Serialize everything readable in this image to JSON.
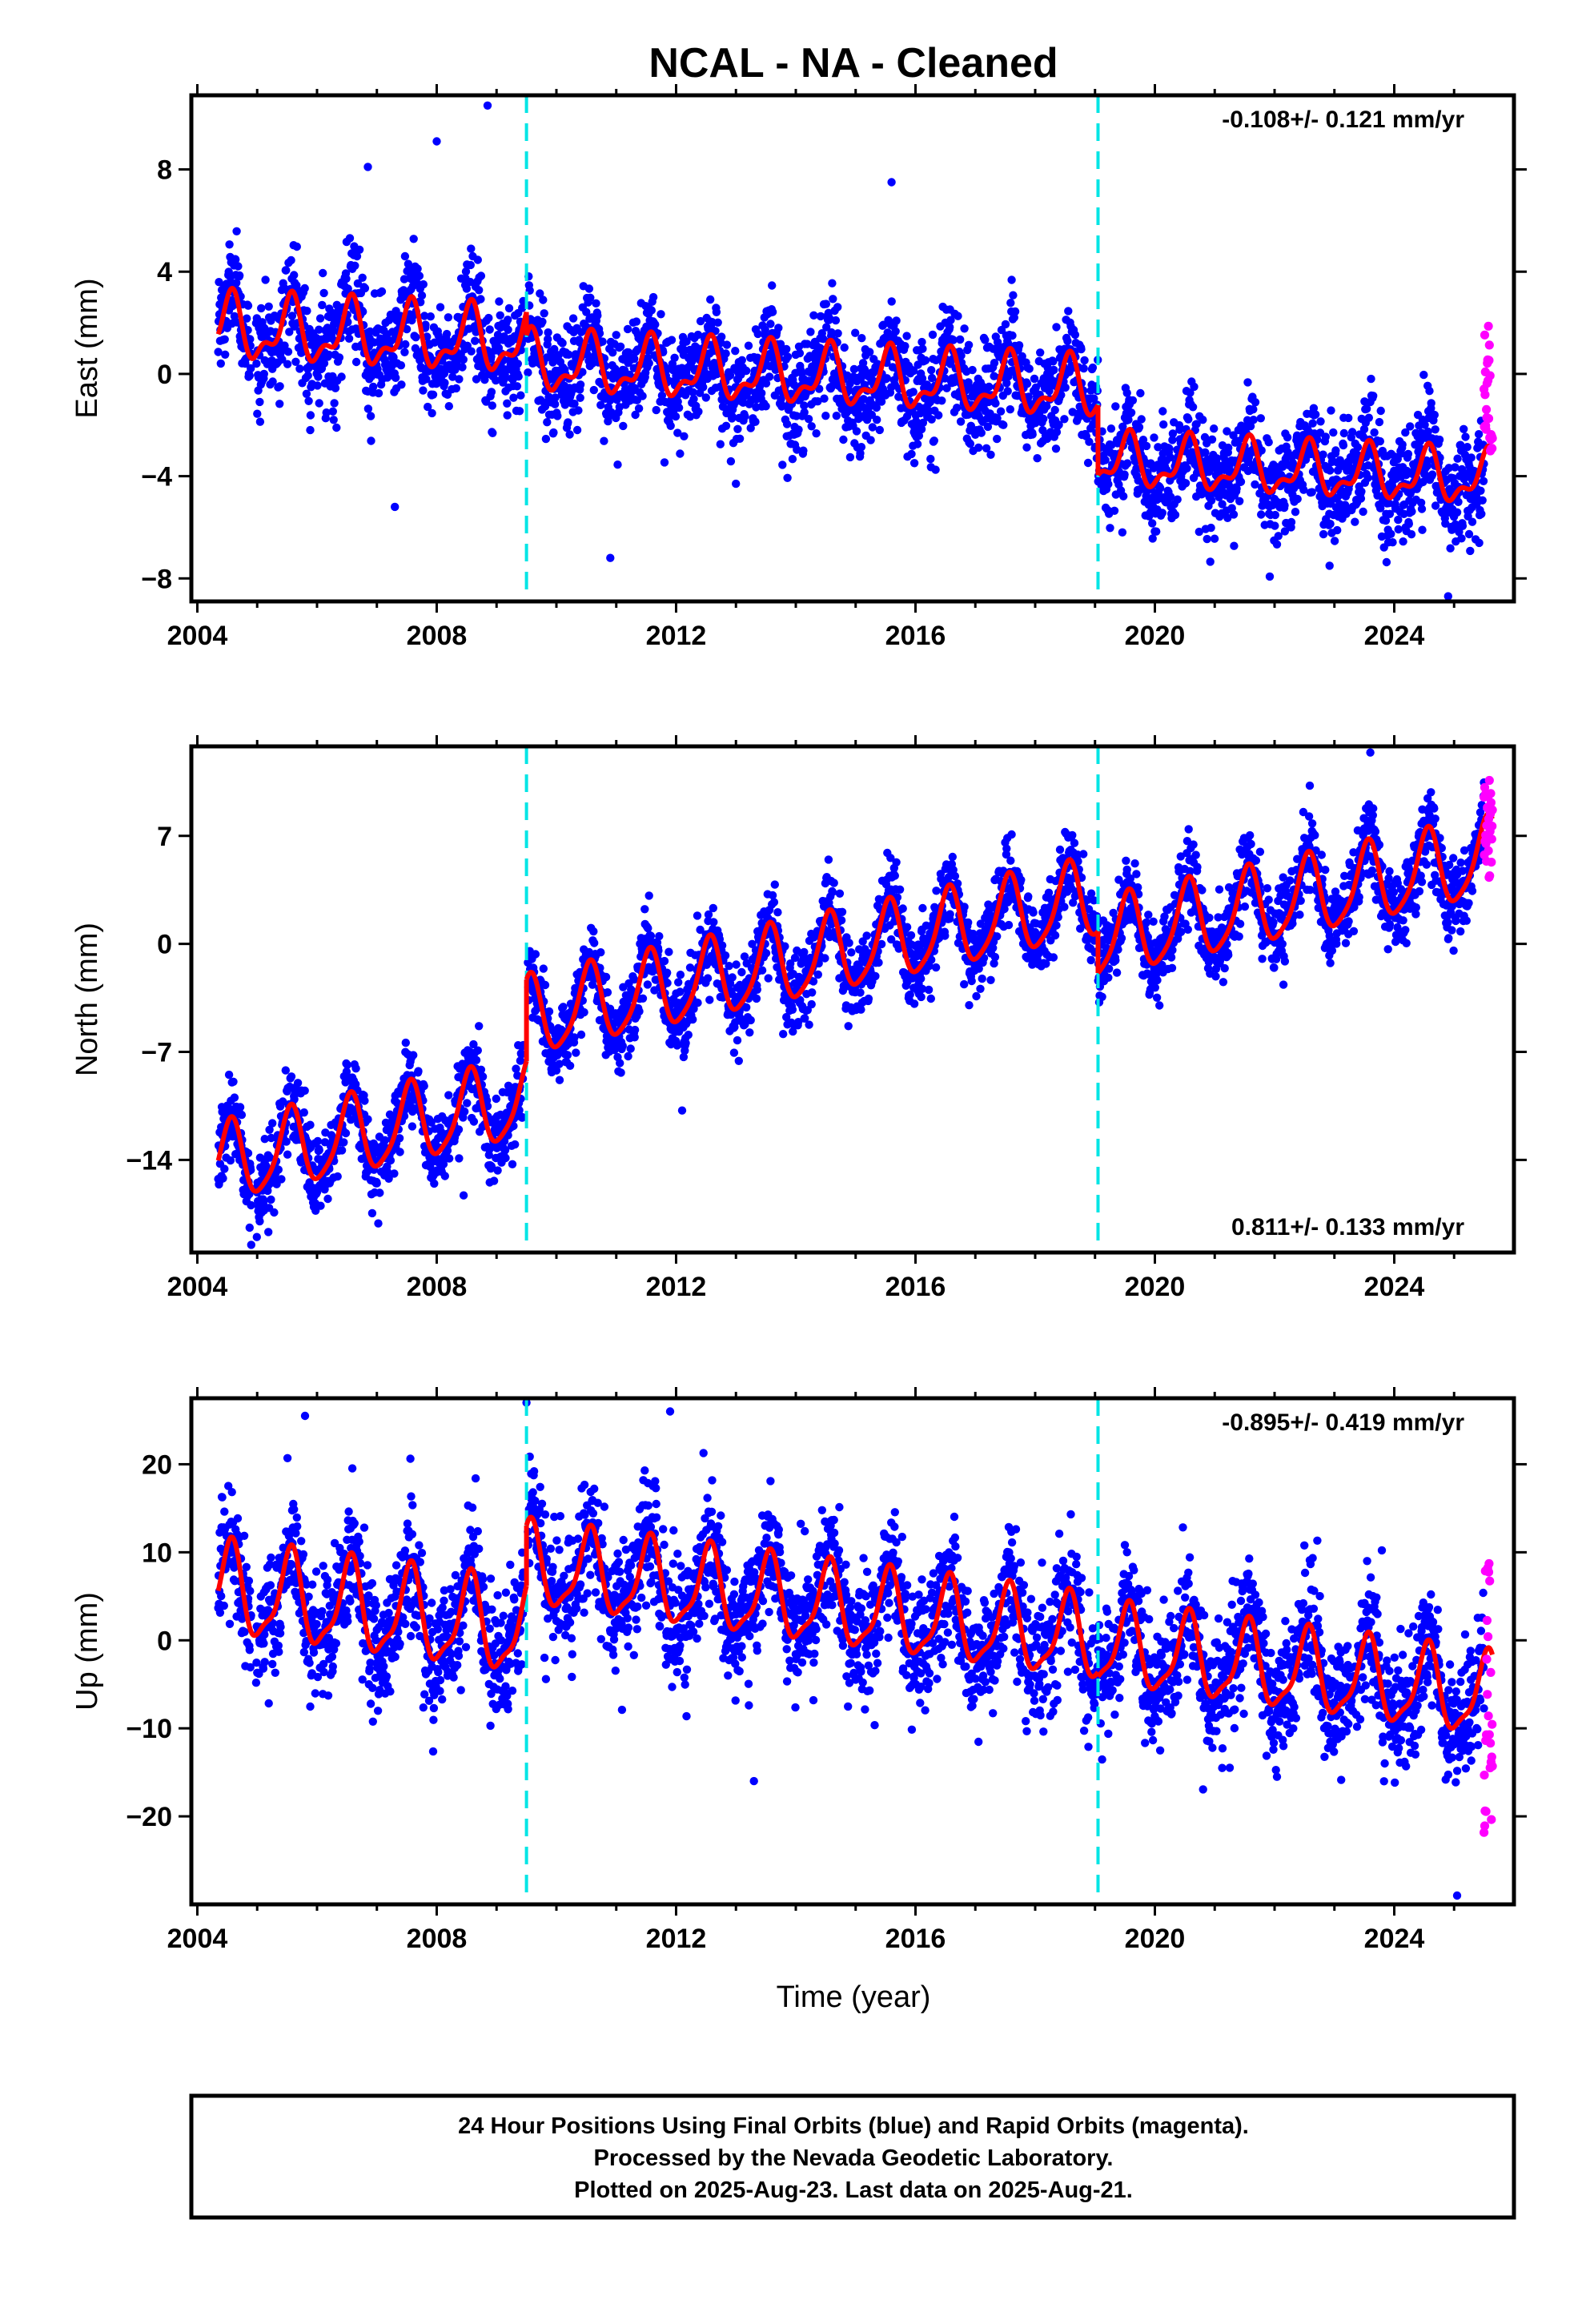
{
  "title": "NCAL  - NA - Cleaned",
  "xlabel": "Time (year)",
  "footer": [
    "24 Hour Positions Using Final Orbits (blue) and Rapid Orbits (magenta).",
    "Processed by the Nevada Geodetic Laboratory.",
    "Plotted on 2025-Aug-23. Last data on 2025-Aug-21."
  ],
  "colors": {
    "final_orbits": "#0000ff",
    "rapid_orbits": "#ff00ff",
    "model_fit": "#ff0000",
    "equipment_change": "#00e5e5"
  },
  "chart_data": [
    {
      "type": "scatter",
      "panel": "east",
      "ylabel": "East (mm)",
      "rate_label": "-0.108+/- 0.121 mm/yr",
      "rate_position": "top-right",
      "xlim": [
        2003.9,
        2026.0
      ],
      "ylim": [
        -8.9,
        10.9
      ],
      "xticks": [
        2004,
        2008,
        2012,
        2016,
        2020,
        2024
      ],
      "yticks": [
        -8,
        -4,
        0,
        4,
        8
      ],
      "offsets_at": [
        2009.5,
        2019.05
      ],
      "series": [
        {
          "name": "Final Orbits",
          "color": "#0000ff",
          "marker": "dot",
          "date_range": [
            2004.35,
            2025.5
          ],
          "approx_noise_sd": 1.05
        },
        {
          "name": "Rapid Orbits",
          "color": "#ff00ff",
          "marker": "dot",
          "date_range": [
            2025.5,
            2025.64
          ],
          "values_range": [
            -3.6,
            1.9
          ]
        },
        {
          "name": "Model Fit",
          "color": "#ff0000",
          "segments": [
            {
              "x_range": [
                2004.35,
                2009.5
              ],
              "intercept_at_2004": 1.8,
              "trend_mm_per_yr": -0.108,
              "annual_amp": 1.1,
              "semiannual_amp": 0.55
            },
            {
              "x_range": [
                2009.5,
                2019.05
              ],
              "intercept_at_2004": 1.0,
              "trend_mm_per_yr": -0.108,
              "annual_amp": 1.0,
              "semiannual_amp": 0.5
            },
            {
              "x_range": [
                2019.05,
                2025.64
              ],
              "intercept_at_2004": -1.8,
              "trend_mm_per_yr": -0.108,
              "annual_amp": 0.9,
              "semiannual_amp": 0.45
            }
          ]
        }
      ],
      "outliers": [
        [
          2008.85,
          10.5
        ],
        [
          2008.0,
          9.1
        ],
        [
          2010.9,
          -7.2
        ],
        [
          2007.3,
          -5.2
        ],
        [
          2006.85,
          8.1
        ],
        [
          2015.6,
          7.5
        ],
        [
          2024.9,
          -8.7
        ]
      ]
    },
    {
      "type": "scatter",
      "panel": "north",
      "ylabel": "North (mm)",
      "rate_label": "0.811+/- 0.133 mm/yr",
      "rate_position": "bottom-right",
      "xlim": [
        2003.9,
        2026.0
      ],
      "ylim": [
        -20.0,
        12.8
      ],
      "xticks": [
        2004,
        2008,
        2012,
        2016,
        2020,
        2024
      ],
      "yticks": [
        -14,
        -7,
        0,
        7
      ],
      "offsets_at": [
        2009.5,
        2019.05
      ],
      "series": [
        {
          "name": "Final Orbits",
          "color": "#0000ff",
          "marker": "dot",
          "date_range": [
            2004.35,
            2025.5
          ],
          "approx_noise_sd": 1.25
        },
        {
          "name": "Rapid Orbits",
          "color": "#ff00ff",
          "marker": "dot",
          "date_range": [
            2025.5,
            2025.64
          ],
          "values_range": [
            4.2,
            11.2
          ]
        },
        {
          "name": "Model Fit",
          "color": "#ff0000",
          "segments": [
            {
              "x_range": [
                2004.35,
                2009.5
              ],
              "intercept_at_2004": -14.6,
              "trend_mm_per_yr": 0.811,
              "annual_amp": 2.5,
              "semiannual_amp": 0.5
            },
            {
              "x_range": [
                2009.5,
                2019.05
              ],
              "intercept_at_2004": -9.3,
              "trend_mm_per_yr": 0.811,
              "annual_amp": 2.5,
              "semiannual_amp": 0.5
            },
            {
              "x_range": [
                2019.05,
                2025.64
              ],
              "intercept_at_2004": -12.0,
              "trend_mm_per_yr": 0.811,
              "annual_amp": 2.5,
              "semiannual_amp": 0.5
            }
          ]
        }
      ],
      "outliers": [
        [
          2004.9,
          -19.5
        ],
        [
          2008.45,
          -16.3
        ],
        [
          2012.1,
          -10.8
        ],
        [
          2023.6,
          12.4
        ]
      ]
    },
    {
      "type": "scatter",
      "panel": "up",
      "ylabel": "Up (mm)",
      "rate_label": "-0.895+/- 0.419 mm/yr",
      "rate_position": "top-right",
      "xlim": [
        2003.9,
        2026.0
      ],
      "ylim": [
        -30.0,
        27.5
      ],
      "xticks": [
        2004,
        2008,
        2012,
        2016,
        2020,
        2024
      ],
      "yticks": [
        -20,
        -10,
        0,
        10,
        20
      ],
      "offsets_at": [
        2009.5,
        2019.05
      ],
      "series": [
        {
          "name": "Final Orbits",
          "color": "#0000ff",
          "marker": "dot",
          "date_range": [
            2004.35,
            2025.5
          ],
          "approx_noise_sd": 3.6
        },
        {
          "name": "Rapid Orbits",
          "color": "#ff00ff",
          "marker": "dot",
          "date_range": [
            2025.5,
            2025.64
          ],
          "values_range": [
            -23.5,
            9.5
          ]
        },
        {
          "name": "Model Fit",
          "color": "#ff0000",
          "segments": [
            {
              "x_range": [
                2004.35,
                2009.5
              ],
              "intercept_at_2004": 5.9,
              "trend_mm_per_yr": -0.895,
              "annual_amp": 5.0,
              "semiannual_amp": 1.5
            },
            {
              "x_range": [
                2009.5,
                2019.05
              ],
              "intercept_at_2004": 13.3,
              "trend_mm_per_yr": -0.895,
              "annual_amp": 4.5,
              "semiannual_amp": 1.3
            },
            {
              "x_range": [
                2019.05,
                2025.64
              ],
              "intercept_at_2004": 12.8,
              "trend_mm_per_yr": -0.895,
              "annual_amp": 4.5,
              "semiannual_amp": 1.3
            }
          ]
        }
      ],
      "outliers": [
        [
          2009.5,
          27.0
        ],
        [
          2005.8,
          25.5
        ],
        [
          2011.9,
          26.0
        ],
        [
          2013.3,
          -16.0
        ],
        [
          2025.05,
          -29.0
        ]
      ]
    }
  ]
}
